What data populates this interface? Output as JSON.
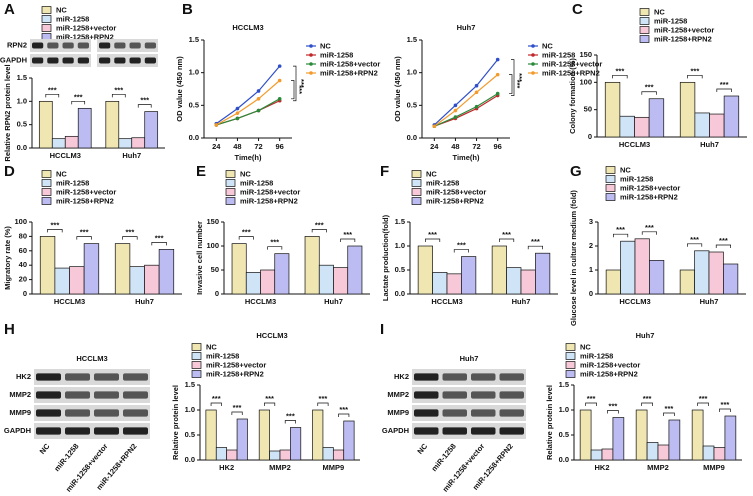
{
  "chart_data": [
    {
      "type": "bar",
      "panel": "A",
      "ylabel": "Relative RPN2 protein level",
      "categories": [
        "HCCLM3",
        "Huh7"
      ],
      "series": [
        {
          "name": "NC",
          "color": "#efe6b2",
          "values": [
            1.0,
            1.0
          ]
        },
        {
          "name": "miR-1258",
          "color": "#cfe4f6",
          "values": [
            0.2,
            0.2
          ]
        },
        {
          "name": "miR-1258+vector",
          "color": "#f6c8d8",
          "values": [
            0.25,
            0.22
          ]
        },
        {
          "name": "miR-1258+RPN2",
          "color": "#bcbcf2",
          "values": [
            0.85,
            0.78
          ]
        }
      ],
      "ylim": [
        0,
        1.5
      ],
      "yticks": [
        {
          "value": 0,
          "label": "0.0"
        },
        0.5,
        {
          "value": 1,
          "label": "1.0"
        },
        1.5
      ],
      "annotations": [
        "***"
      ],
      "blot": {
        "rows": [
          "RPN2",
          "GAPDH"
        ]
      }
    },
    {
      "type": "line",
      "panel": "B",
      "title": "HCCLM3",
      "xlabel": "Time(h)",
      "ylabel": "OD value (450 nm)",
      "x": [
        24,
        48,
        72,
        96
      ],
      "xlim": [
        10,
        110
      ],
      "xticks": [
        24,
        48,
        72,
        96
      ],
      "ylim": [
        0,
        1.5
      ],
      "yticks": [
        {
          "value": 0,
          "label": "0.0"
        },
        0.5,
        {
          "value": 1,
          "label": "1.0"
        },
        1.5
      ],
      "series": [
        {
          "name": "NC",
          "color": "#2f4fc9",
          "values": [
            0.22,
            0.45,
            0.72,
            1.1
          ]
        },
        {
          "name": "miR-1258",
          "color": "#c0282b",
          "values": [
            0.2,
            0.3,
            0.42,
            0.57
          ]
        },
        {
          "name": "miR-1258+vector",
          "color": "#2a8a3a",
          "values": [
            0.2,
            0.3,
            0.42,
            0.6
          ]
        },
        {
          "name": "miR-1258+RPN2",
          "color": "#f39a2b",
          "values": [
            0.2,
            0.38,
            0.6,
            0.88
          ]
        }
      ],
      "annotations": [
        "***"
      ]
    },
    {
      "type": "line",
      "title": "Huh7",
      "xlabel": "Time(h)",
      "ylabel": "OD value (450 nm)",
      "x": [
        24,
        48,
        72,
        96
      ],
      "xlim": [
        10,
        110
      ],
      "xticks": [
        24,
        48,
        72,
        96
      ],
      "ylim": [
        0,
        1.5
      ],
      "yticks": [
        {
          "value": 0,
          "label": "0.0"
        },
        0.5,
        {
          "value": 1,
          "label": "1.0"
        },
        1.5
      ],
      "series": [
        {
          "name": "NC",
          "color": "#2f4fc9",
          "values": [
            0.2,
            0.5,
            0.8,
            1.2
          ]
        },
        {
          "name": "miR-1258",
          "color": "#c0282b",
          "values": [
            0.18,
            0.3,
            0.45,
            0.65
          ]
        },
        {
          "name": "miR-1258+vector",
          "color": "#2a8a3a",
          "values": [
            0.18,
            0.32,
            0.48,
            0.68
          ]
        },
        {
          "name": "miR-1258+RPN2",
          "color": "#f39a2b",
          "values": [
            0.18,
            0.42,
            0.7,
            0.97
          ]
        }
      ],
      "annotations": [
        "***"
      ]
    },
    {
      "type": "bar",
      "panel": "C",
      "ylabel": "Colony formation (%)",
      "categories": [
        "HCCLM3",
        "Huh7"
      ],
      "series": [
        {
          "name": "NC",
          "color": "#efe6b2",
          "values": [
            100,
            100
          ]
        },
        {
          "name": "miR-1258",
          "color": "#cfe4f6",
          "values": [
            38,
            44
          ]
        },
        {
          "name": "miR-1258+vector",
          "color": "#f6c8d8",
          "values": [
            36,
            42
          ]
        },
        {
          "name": "miR-1258+RPN2",
          "color": "#bcbcf2",
          "values": [
            70,
            75
          ]
        }
      ],
      "ylim": [
        0,
        150
      ],
      "yticks": [
        0,
        50,
        100,
        150
      ],
      "annotations": [
        "***"
      ]
    },
    {
      "type": "bar",
      "panel": "D",
      "ylabel": "Migratory rate (%)",
      "categories": [
        "HCCLM3",
        "Huh7"
      ],
      "series": [
        {
          "name": "NC",
          "color": "#efe6b2",
          "values": [
            80,
            70
          ]
        },
        {
          "name": "miR-1258",
          "color": "#cfe4f6",
          "values": [
            36,
            38
          ]
        },
        {
          "name": "miR-1258+vector",
          "color": "#f6c8d8",
          "values": [
            38,
            40
          ]
        },
        {
          "name": "miR-1258+RPN2",
          "color": "#bcbcf2",
          "values": [
            70,
            62
          ]
        }
      ],
      "ylim": [
        0,
        100
      ],
      "yticks": [
        0,
        20,
        40,
        60,
        80,
        100
      ],
      "annotations": [
        "***"
      ]
    },
    {
      "type": "bar",
      "panel": "E",
      "ylabel": "Invasive cell number",
      "categories": [
        "HCCLM3",
        "Huh7"
      ],
      "series": [
        {
          "name": "NC",
          "color": "#efe6b2",
          "values": [
            105,
            120
          ]
        },
        {
          "name": "miR-1258",
          "color": "#cfe4f6",
          "values": [
            45,
            60
          ]
        },
        {
          "name": "miR-1258+vector",
          "color": "#f6c8d8",
          "values": [
            50,
            55
          ]
        },
        {
          "name": "miR-1258+RPN2",
          "color": "#bcbcf2",
          "values": [
            84,
            100
          ]
        }
      ],
      "ylim": [
        0,
        150
      ],
      "yticks": [
        0,
        50,
        100,
        150
      ],
      "annotations": [
        "***"
      ]
    },
    {
      "type": "bar",
      "panel": "F",
      "ylabel": "Lactate production(fold)",
      "categories": [
        "HCCLM3",
        "Huh7"
      ],
      "series": [
        {
          "name": "NC",
          "color": "#efe6b2",
          "values": [
            1.0,
            1.0
          ]
        },
        {
          "name": "miR-1258",
          "color": "#cfe4f6",
          "values": [
            0.45,
            0.55
          ]
        },
        {
          "name": "miR-1258+vector",
          "color": "#f6c8d8",
          "values": [
            0.42,
            0.5
          ]
        },
        {
          "name": "miR-1258+RPN2",
          "color": "#bcbcf2",
          "values": [
            0.78,
            0.85
          ]
        }
      ],
      "ylim": [
        0,
        1.5
      ],
      "yticks": [
        {
          "value": 0,
          "label": "0.0"
        },
        0.5,
        {
          "value": 1,
          "label": "1.0"
        },
        1.5
      ],
      "annotations": [
        "***"
      ]
    },
    {
      "type": "bar",
      "panel": "G",
      "ylabel": "Glucose level in culture medium (fold)",
      "categories": [
        "HCCLM3",
        "Huh7"
      ],
      "series": [
        {
          "name": "NC",
          "color": "#efe6b2",
          "values": [
            1.0,
            1.0
          ]
        },
        {
          "name": "miR-1258",
          "color": "#cfe4f6",
          "values": [
            2.2,
            1.8
          ]
        },
        {
          "name": "miR-1258+vector",
          "color": "#f6c8d8",
          "values": [
            2.3,
            1.75
          ]
        },
        {
          "name": "miR-1258+RPN2",
          "color": "#bcbcf2",
          "values": [
            1.4,
            1.25
          ]
        }
      ],
      "ylim": [
        0,
        3
      ],
      "yticks": [
        0,
        1,
        2,
        3
      ],
      "annotations": [
        "***"
      ]
    },
    {
      "type": "bar",
      "panel": "H",
      "title": "HCCLM3",
      "ylabel": "Relative protein level",
      "categories": [
        "HK2",
        "MMP2",
        "MMP9"
      ],
      "series": [
        {
          "name": "NC",
          "color": "#efe6b2",
          "values": [
            1.0,
            1.0,
            1.0
          ]
        },
        {
          "name": "miR-1258",
          "color": "#cfe4f6",
          "values": [
            0.25,
            0.18,
            0.25
          ]
        },
        {
          "name": "miR-1258+vector",
          "color": "#f6c8d8",
          "values": [
            0.2,
            0.2,
            0.2
          ]
        },
        {
          "name": "miR-1258+RPN2",
          "color": "#bcbcf2",
          "values": [
            0.82,
            0.65,
            0.78
          ]
        }
      ],
      "ylim": [
        0,
        1.5
      ],
      "yticks": [
        {
          "value": 0,
          "label": "0.0"
        },
        0.5,
        {
          "value": 1,
          "label": "1.0"
        },
        1.5
      ],
      "annotations": [
        "***"
      ],
      "blot": {
        "title": "HCCLM3",
        "rows": [
          "HK2",
          "MMP2",
          "MMP9",
          "GAPDH"
        ],
        "lanes": [
          "NC",
          "miR-1258",
          "miR-1258+vector",
          "miR-1258+RPN2"
        ]
      }
    },
    {
      "type": "bar",
      "panel": "I",
      "title": "Huh7",
      "ylabel": "Relative protein level",
      "categories": [
        "HK2",
        "MMP2",
        "MMP9"
      ],
      "series": [
        {
          "name": "NC",
          "color": "#efe6b2",
          "values": [
            1.0,
            1.0,
            1.0
          ]
        },
        {
          "name": "miR-1258",
          "color": "#cfe4f6",
          "values": [
            0.2,
            0.35,
            0.28
          ]
        },
        {
          "name": "miR-1258+vector",
          "color": "#f6c8d8",
          "values": [
            0.22,
            0.3,
            0.25
          ]
        },
        {
          "name": "miR-1258+RPN2",
          "color": "#bcbcf2",
          "values": [
            0.85,
            0.8,
            0.88
          ]
        }
      ],
      "ylim": [
        0,
        1.5
      ],
      "yticks": [
        {
          "value": 0,
          "label": "0.0"
        },
        0.5,
        {
          "value": 1,
          "label": "1.0"
        },
        1.5
      ],
      "annotations": [
        "***"
      ],
      "blot": {
        "title": "Huh7",
        "rows": [
          "HK2",
          "MMP2",
          "MMP9",
          "GAPDH"
        ],
        "lanes": [
          "NC",
          "miR-1258",
          "miR-1258+vector",
          "miR-1258+RPN2"
        ]
      }
    }
  ]
}
